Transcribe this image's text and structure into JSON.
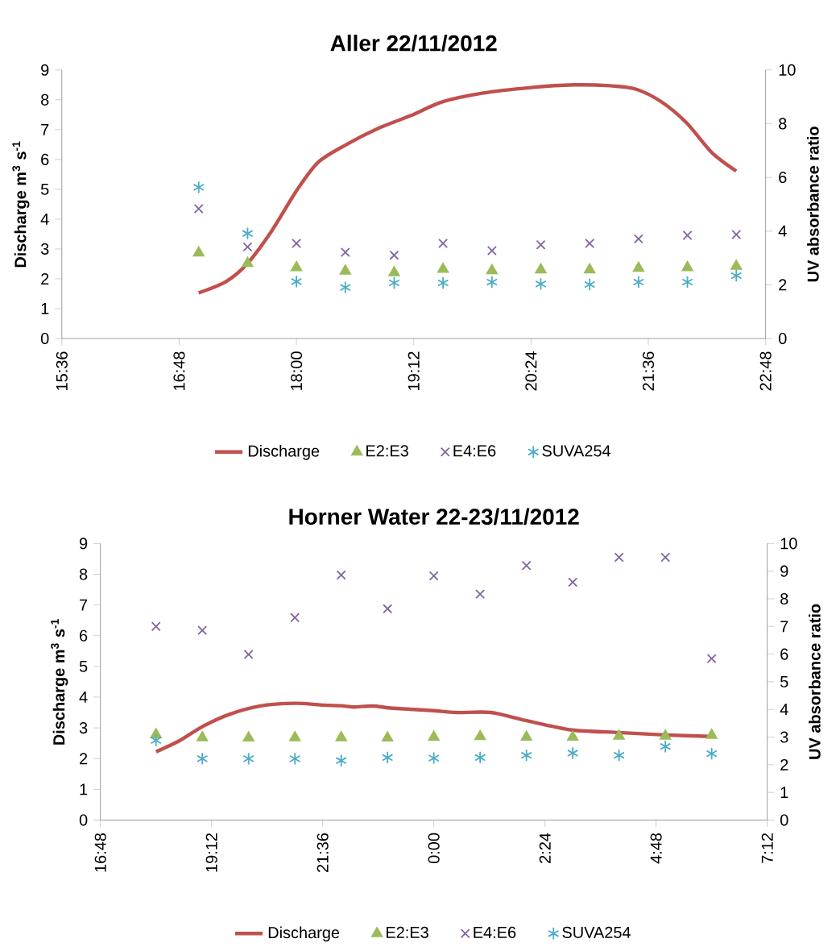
{
  "chart_data": [
    {
      "type": "scatter",
      "title": "Aller 22/11/2012",
      "ylabel": "Discharge m$^{3}$ s$^{-1}$",
      "y2label": "UV absorbance ratio",
      "xlim": [
        15.6,
        22.8
      ],
      "xticks": [
        {
          "value": 15.6,
          "label": "15:36"
        },
        {
          "value": 16.8,
          "label": "16:48"
        },
        {
          "value": 18,
          "label": "18:00"
        },
        {
          "value": 19.2,
          "label": "19:12"
        },
        {
          "value": 20.4,
          "label": "20:24"
        },
        {
          "value": 21.6,
          "label": "21:36"
        },
        {
          "value": 22.8,
          "label": "22:48"
        }
      ],
      "ylim": [
        0,
        9
      ],
      "yticks": [
        0,
        1,
        2,
        3,
        4,
        5,
        6,
        7,
        8,
        9
      ],
      "y2lim": [
        0,
        10
      ],
      "y2ticks": [
        0,
        2,
        4,
        6,
        8,
        10
      ],
      "legend": "bottom",
      "series": [
        {
          "name": "Discharge",
          "type": "line",
          "color": "#c0504d",
          "line_style": "solid",
          "x": [
            17.0,
            17.28,
            17.5,
            17.75,
            18.0,
            18.22,
            18.5,
            18.85,
            19.2,
            19.48,
            19.9,
            20.4,
            20.84,
            21.21,
            21.47,
            21.73,
            21.99,
            22.25,
            22.5
          ],
          "values": [
            1.53,
            1.91,
            2.52,
            3.62,
            4.95,
            5.9,
            6.48,
            7.06,
            7.51,
            7.92,
            8.22,
            8.41,
            8.5,
            8.47,
            8.36,
            7.94,
            7.23,
            6.23,
            5.61
          ]
        },
        {
          "name": "E2:E3",
          "axis": "y2",
          "marker": "triangle",
          "color": "#9bbb59",
          "x": [
            17.0,
            17.5,
            18.0,
            18.5,
            19.0,
            19.5,
            20.0,
            20.5,
            21.0,
            21.5,
            22.0,
            22.5
          ],
          "values": [
            3.19,
            2.8,
            2.64,
            2.51,
            2.45,
            2.58,
            2.53,
            2.56,
            2.56,
            2.62,
            2.64,
            2.69
          ]
        },
        {
          "name": "E4:E6",
          "axis": "y2",
          "marker": "cross",
          "color": "#8064a2",
          "x": [
            17.0,
            17.5,
            18.0,
            18.5,
            19.0,
            19.5,
            20.0,
            20.5,
            21.0,
            21.5,
            22.0,
            22.5
          ],
          "values": [
            4.83,
            3.41,
            3.54,
            3.21,
            3.1,
            3.54,
            3.27,
            3.49,
            3.54,
            3.71,
            3.84,
            3.87
          ]
        },
        {
          "name": "SUVA254",
          "axis": "y2",
          "color": "#4bacc6",
          "x": [
            17.0,
            17.5,
            18.0,
            18.5,
            19.0,
            19.5,
            20.0,
            20.5,
            21.0,
            21.5,
            22.0,
            22.5
          ],
          "values": [
            5.63,
            3.91,
            2.12,
            1.9,
            2.07,
            2.07,
            2.1,
            2.03,
            2.01,
            2.1,
            2.1,
            2.34
          ]
        }
      ]
    },
    {
      "type": "scatter",
      "title": "Horner Water 22-23/11/2012",
      "ylabel": "Discharge m$^{3}$ s$^{-1}$",
      "y2label": "UV absorbance ratio",
      "xlim": [
        "2012-11-22T16:48",
        "2012-11-23T07:12"
      ],
      "xticks": [
        {
          "value": "2012-11-22T16:48",
          "label": "16:48"
        },
        {
          "value": "2012-11-22T19:12",
          "label": "19:12"
        },
        {
          "value": "2012-11-22T21:36",
          "label": "21:36"
        },
        {
          "value": "2012-11-23T00:00",
          "label": "0:00"
        },
        {
          "value": "2012-11-23T02:24",
          "label": "2:24"
        },
        {
          "value": "2012-11-23T04:48",
          "label": "4:48"
        },
        {
          "value": "2012-11-23T07:12",
          "label": "7:12"
        }
      ],
      "ylim": [
        0,
        9
      ],
      "yticks": [
        0,
        1,
        2,
        3,
        4,
        5,
        6,
        7,
        8,
        9
      ],
      "y2lim": [
        0,
        10
      ],
      "y2ticks": [
        0,
        1,
        2,
        3,
        4,
        5,
        6,
        7,
        8,
        9,
        10
      ],
      "legend": "bottom",
      "series": [
        {
          "name": "Discharge",
          "type": "line",
          "color": "#c0504d",
          "line_style": "solid",
          "x": [
            "2012-11-22T18:00",
            "2012-11-22T18:31",
            "2012-11-22T19:00",
            "2012-11-22T19:35",
            "2012-11-22T20:14",
            "2012-11-22T21:00",
            "2012-11-22T21:37",
            "2012-11-22T22:00",
            "2012-11-22T22:16",
            "2012-11-22T22:41",
            "2012-11-22T23:07",
            "2012-11-23T00:00",
            "2012-11-23T00:29",
            "2012-11-23T01:14",
            "2012-11-23T01:59",
            "2012-11-23T02:59",
            "2012-11-23T03:59",
            "2012-11-23T04:59",
            "2012-11-23T05:59"
          ],
          "values": [
            2.22,
            2.59,
            3.04,
            3.44,
            3.71,
            3.8,
            3.74,
            3.72,
            3.68,
            3.71,
            3.64,
            3.56,
            3.5,
            3.5,
            3.24,
            2.93,
            2.85,
            2.77,
            2.72
          ]
        },
        {
          "name": "E2:E3",
          "axis": "y2",
          "marker": "triangle",
          "color": "#9bbb59",
          "x": [
            "2012-11-22T18:00",
            "2012-11-22T19:00",
            "2012-11-22T20:00",
            "2012-11-22T21:00",
            "2012-11-22T22:00",
            "2012-11-22T23:00",
            "2012-11-23T00:00",
            "2012-11-23T01:00",
            "2012-11-23T02:00",
            "2012-11-23T03:00",
            "2012-11-23T04:00",
            "2012-11-23T05:00",
            "2012-11-23T06:00"
          ],
          "values": [
            3.09,
            2.98,
            2.97,
            2.98,
            2.98,
            2.97,
            3.0,
            3.02,
            3.0,
            3.0,
            3.04,
            3.04,
            3.07
          ]
        },
        {
          "name": "E4:E6",
          "axis": "y2",
          "marker": "cross",
          "color": "#8064a2",
          "x": [
            "2012-11-22T18:00",
            "2012-11-22T19:00",
            "2012-11-22T20:00",
            "2012-11-22T21:00",
            "2012-11-22T22:00",
            "2012-11-22T23:00",
            "2012-11-23T00:00",
            "2012-11-23T01:00",
            "2012-11-23T02:00",
            "2012-11-23T03:00",
            "2012-11-23T04:00",
            "2012-11-23T05:00",
            "2012-11-23T06:00"
          ],
          "values": [
            7.0,
            6.86,
            5.99,
            7.32,
            8.86,
            7.64,
            8.83,
            8.17,
            9.2,
            8.6,
            9.5,
            9.5,
            5.84
          ]
        },
        {
          "name": "SUVA254",
          "axis": "y2",
          "color": "#4bacc6",
          "x": [
            "2012-11-22T18:00",
            "2012-11-22T19:00",
            "2012-11-22T20:00",
            "2012-11-22T21:00",
            "2012-11-22T22:00",
            "2012-11-22T23:00",
            "2012-11-23T00:00",
            "2012-11-23T01:00",
            "2012-11-23T02:00",
            "2012-11-23T03:00",
            "2012-11-23T04:00",
            "2012-11-23T05:00",
            "2012-11-23T06:00"
          ],
          "values": [
            2.88,
            2.22,
            2.22,
            2.22,
            2.15,
            2.26,
            2.24,
            2.26,
            2.34,
            2.42,
            2.34,
            2.66,
            2.4
          ]
        }
      ]
    }
  ]
}
